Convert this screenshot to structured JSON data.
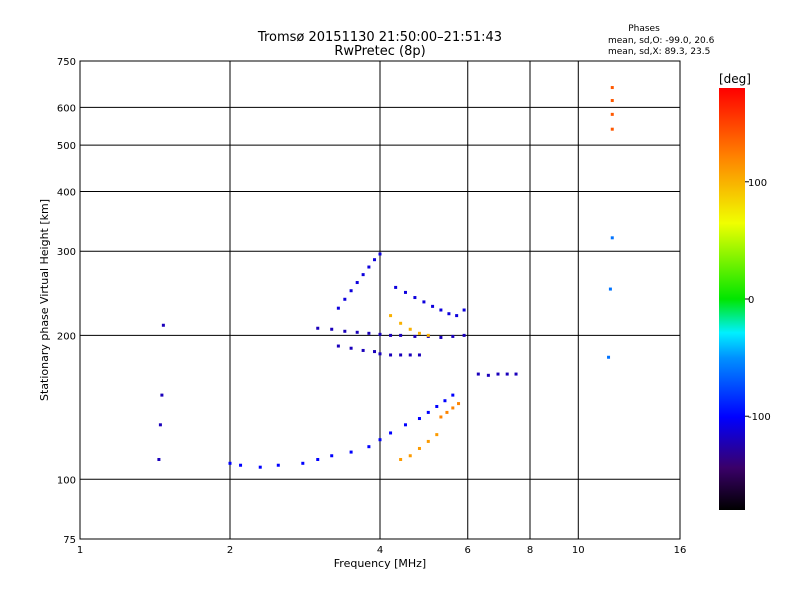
{
  "chart_data": {
    "type": "scatter",
    "title": "Tromsø 20151130 21:50:00–21:51:43",
    "subtitle": "RwPretec (8p)",
    "xlabel": "Frequency [MHz]",
    "ylabel": "Stationary phase Virtual Height [km]",
    "x_scale": "log",
    "y_scale": "log",
    "xlim": [
      1,
      16
    ],
    "ylim": [
      75,
      750
    ],
    "x_ticks": [
      1,
      2,
      4,
      6,
      8,
      10,
      16
    ],
    "x_tick_labels": [
      "1",
      "2",
      "4",
      "6",
      "8",
      "10",
      "16"
    ],
    "y_ticks": [
      75,
      100,
      200,
      300,
      400,
      500,
      600,
      750
    ],
    "y_tick_labels": [
      "75",
      "100",
      "200",
      "300",
      "400",
      "500",
      "600",
      "750"
    ],
    "grid": true,
    "phase_stats": {
      "heading": "Phases",
      "line_o": "mean, sd,O: -99.0, 20.6",
      "line_x": "mean, sd,X:  89.3, 23.5"
    },
    "colorbar": {
      "label": "[deg]",
      "range": [
        -180,
        180
      ],
      "ticks": [
        100,
        0,
        -100
      ],
      "tick_labels": [
        "100",
        "0",
        "-100"
      ],
      "placement": "right"
    },
    "traces": [
      {
        "name": "",
        "x": [
          2.0,
          2.1,
          2.3,
          2.5,
          2.8,
          3.0,
          3.2,
          3.5,
          3.8,
          4.0,
          4.2,
          4.5,
          4.8,
          5.0,
          5.2,
          5.4,
          5.6
        ],
        "y": [
          108,
          107,
          106,
          107,
          108,
          110,
          112,
          114,
          117,
          121,
          125,
          130,
          134,
          138,
          142,
          146,
          150
        ],
        "phase": -100
      },
      {
        "name": "",
        "x": [
          3.0,
          3.2,
          3.4,
          3.6,
          3.8,
          4.0,
          4.2,
          4.4,
          4.7,
          5.0,
          5.3,
          5.6,
          5.9
        ],
        "y": [
          207,
          206,
          204,
          203,
          202,
          201,
          200,
          200,
          199,
          199,
          198,
          199,
          200
        ],
        "phase": -120
      },
      {
        "name": "",
        "x": [
          3.3,
          3.4,
          3.5,
          3.6,
          3.7,
          3.8,
          3.9,
          4.0
        ],
        "y": [
          228,
          238,
          248,
          258,
          268,
          278,
          288,
          296
        ],
        "phase": -110
      },
      {
        "name": "",
        "x": [
          3.3,
          3.5,
          3.7,
          3.9,
          4.0,
          4.2,
          4.4,
          4.6,
          4.8
        ],
        "y": [
          190,
          188,
          186,
          185,
          183,
          182,
          182,
          182,
          182
        ],
        "phase": -120
      },
      {
        "name": "",
        "x": [
          4.3,
          4.5,
          4.7,
          4.9,
          5.1,
          5.3,
          5.5,
          5.7,
          5.9
        ],
        "y": [
          252,
          246,
          240,
          235,
          230,
          226,
          222,
          220,
          226
        ],
        "phase": -110
      },
      {
        "name": "",
        "x": [
          6.3,
          6.6,
          6.9,
          7.2,
          7.5
        ],
        "y": [
          166,
          165,
          166,
          166,
          166
        ],
        "phase": -120
      },
      {
        "name": "",
        "x": [
          4.2,
          4.4,
          4.6,
          4.8,
          5.0
        ],
        "y": [
          220,
          212,
          206,
          202,
          200
        ],
        "phase": 100
      },
      {
        "name": "",
        "x": [
          4.4,
          4.6,
          4.8,
          5.0,
          5.2
        ],
        "y": [
          110,
          112,
          116,
          120,
          124
        ],
        "phase": 110
      },
      {
        "name": "",
        "x": [
          5.3,
          5.45,
          5.6,
          5.75
        ],
        "y": [
          135,
          138,
          141,
          144
        ],
        "phase": 120
      },
      {
        "name": "",
        "x": [
          1.44,
          1.45,
          1.46,
          1.47
        ],
        "y": [
          110,
          130,
          150,
          210
        ],
        "phase": -120
      },
      {
        "name": "",
        "x": [
          11.5,
          11.6,
          11.7
        ],
        "y": [
          180,
          250,
          320
        ],
        "phase": -60
      },
      {
        "name": "",
        "x": [
          11.7,
          11.7,
          11.7,
          11.7
        ],
        "y": [
          540,
          580,
          620,
          660
        ],
        "phase": 140
      }
    ]
  }
}
